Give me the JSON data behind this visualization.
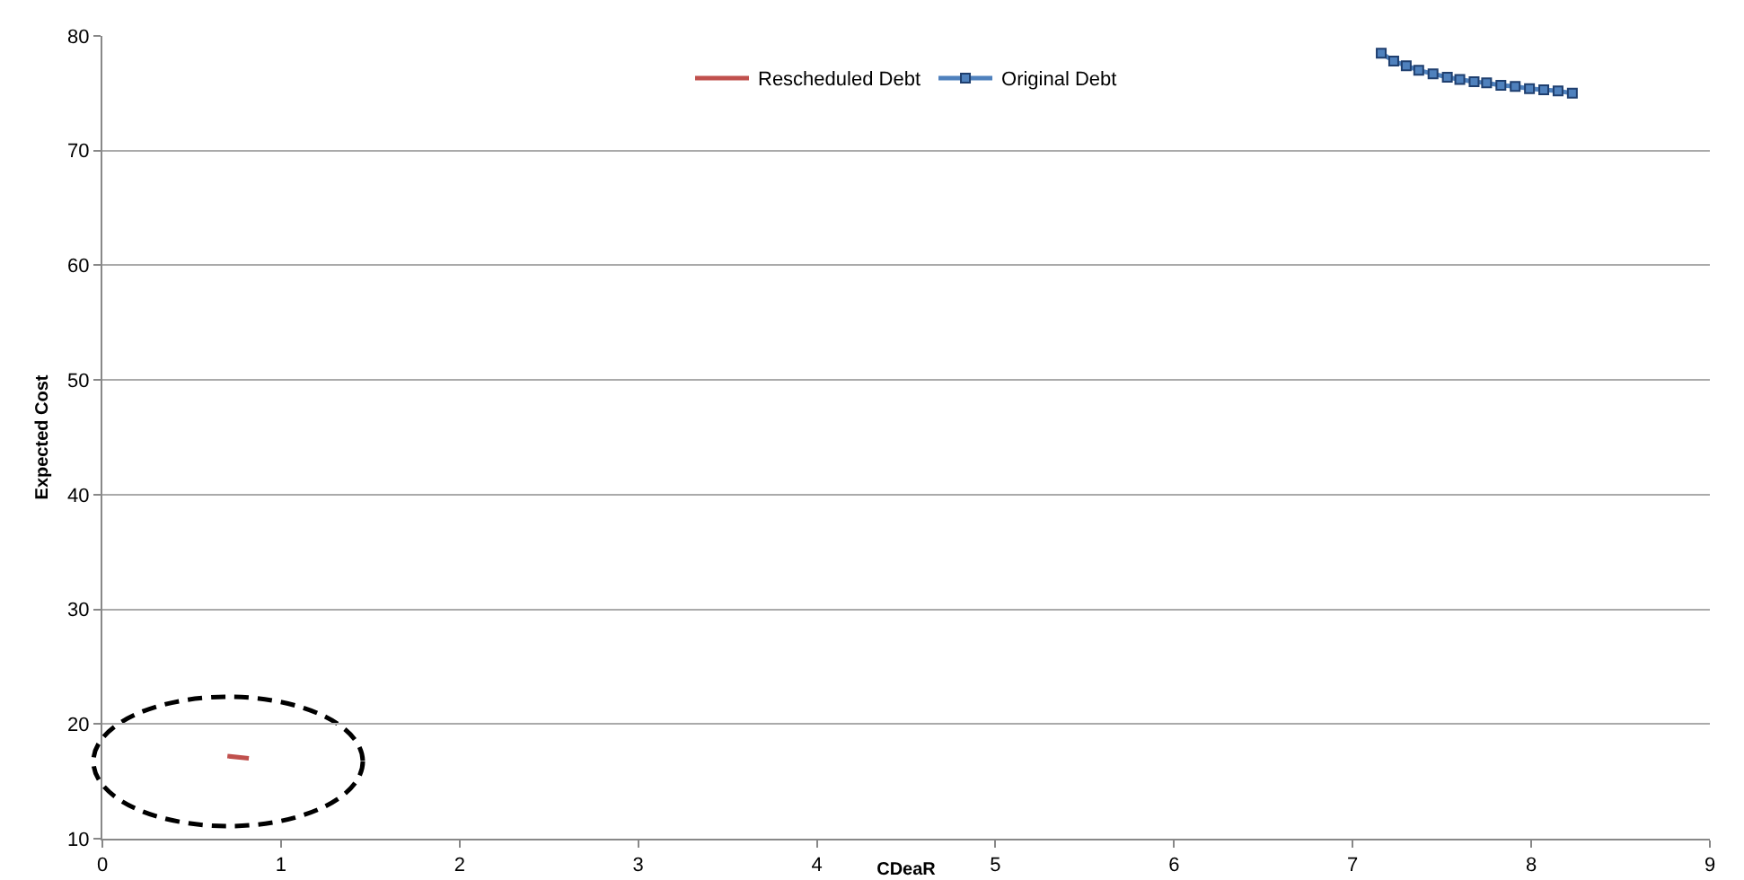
{
  "chart_data": {
    "type": "line",
    "xlabel": "CDeaR",
    "ylabel": "Expected Cost",
    "xlim": [
      0,
      9
    ],
    "xticks": [
      0,
      1,
      2,
      3,
      4,
      5,
      6,
      7,
      8,
      9
    ],
    "ylim": [
      10,
      80
    ],
    "yticks": [
      10,
      20,
      30,
      40,
      50,
      60,
      70,
      80
    ],
    "grid": "y",
    "legend": "top",
    "series": [
      {
        "name": "Rescheduled Debt",
        "color": "#c0504d",
        "marker": "none",
        "x": [
          0.7,
          0.82
        ],
        "values": [
          17.2,
          17.0
        ]
      },
      {
        "name": "Original Debt",
        "color": "#4f81bd",
        "marker": "square",
        "x": [
          7.16,
          7.23,
          7.3,
          7.37,
          7.45,
          7.53,
          7.6,
          7.68,
          7.75,
          7.83,
          7.91,
          7.99,
          8.07,
          8.15,
          8.23
        ],
        "values": [
          78.5,
          77.8,
          77.4,
          77.0,
          76.7,
          76.4,
          76.2,
          76.0,
          75.9,
          75.7,
          75.6,
          75.4,
          75.3,
          75.2,
          75.0
        ]
      }
    ]
  }
}
